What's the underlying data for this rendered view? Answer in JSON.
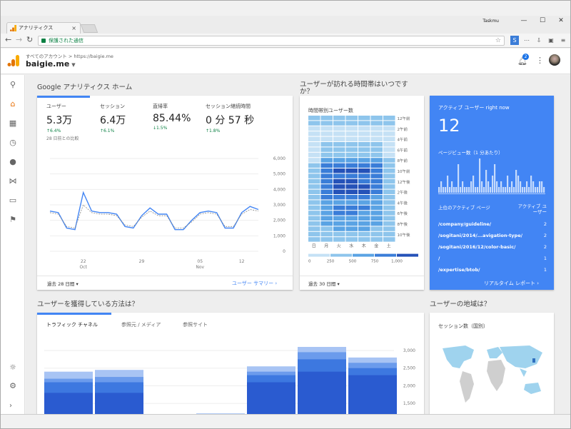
{
  "browser": {
    "tab_title": "アナリティクス",
    "tab_close": "×",
    "user": "Taskmu",
    "url_text": "保護された通信",
    "window_controls": {
      "min": "—",
      "max": "☐",
      "close": "✕"
    }
  },
  "header": {
    "breadcrumb": "すべてのアカウント > https://baigie.me",
    "property": "baigie.me",
    "notifications": "2"
  },
  "home": {
    "section_title": "Google アナリティクス ホーム",
    "metrics": [
      {
        "label": "ユーザー",
        "value": "5.3万",
        "change": "↑6.4%",
        "note": "28 日前との比較"
      },
      {
        "label": "セッション",
        "value": "6.4万",
        "change": "↑6.1%"
      },
      {
        "label": "直帰率",
        "value": "85.44%",
        "change": "↓1.5%"
      },
      {
        "label": "セッション継続時間",
        "value": "0 分 57 秒",
        "change": "↑1.8%"
      }
    ],
    "date_range": "過去 28 日間",
    "summary_link": "ユーザー サマリー"
  },
  "chart_data": [
    {
      "type": "line",
      "y_ticks": [
        "6,000",
        "5,000",
        "4,000",
        "3,000",
        "2,000",
        "1,000",
        "0"
      ],
      "ylim": [
        0,
        6000
      ],
      "x_ticks": [
        {
          "day": "22",
          "month": "Oct"
        },
        {
          "day": "29",
          "month": ""
        },
        {
          "day": "05",
          "month": "Nov"
        },
        {
          "day": "12",
          "month": ""
        }
      ],
      "series": [
        {
          "values": [
            2600,
            2500,
            1500,
            1400,
            3800,
            2600,
            2500,
            2500,
            2400,
            1600,
            1500,
            2300,
            2800,
            2400,
            2400,
            1400,
            1400,
            2000,
            2500,
            2600,
            2500,
            1500,
            1500,
            2500,
            2900,
            2700
          ]
        },
        {
          "values": [
            2500,
            2400,
            1600,
            1500,
            3000,
            2500,
            2400,
            2400,
            2300,
            1700,
            1600,
            2200,
            2600,
            2300,
            2300,
            1500,
            1500,
            1900,
            2400,
            2500,
            2400,
            1600,
            1600,
            2400,
            2700,
            2600
          ]
        }
      ]
    },
    {
      "type": "bar",
      "y_ticks": [
        "3,000",
        "2,500",
        "2,000",
        "1,500"
      ],
      "ylim": [
        1000,
        3100
      ],
      "series_colors": [
        "#2a5bd0",
        "#3d78e0",
        "#6b9bec",
        "#a8c4f4"
      ],
      "stacks": [
        [
          1800,
          2100,
          2200,
          2400
        ],
        [
          1800,
          2100,
          2250,
          2450
        ],
        [
          1100,
          1150,
          1180,
          1200
        ],
        [
          1120,
          1170,
          1200,
          1220
        ],
        [
          2100,
          2300,
          2400,
          2550
        ],
        [
          2400,
          2750,
          2950,
          3100
        ],
        [
          2300,
          2500,
          2650,
          2800
        ]
      ]
    }
  ],
  "heatmap": {
    "section_title": "ユーザーが訪れる時間帯はいつですか？",
    "title": "時間帯別ユーザー数",
    "hours": [
      "12午前",
      "2午前",
      "4午前",
      "6午前",
      "8午前",
      "10午前",
      "12午後",
      "2午後",
      "4午後",
      "6午後",
      "8午後",
      "10午後"
    ],
    "days": [
      "日",
      "月",
      "火",
      "水",
      "木",
      "金",
      "土"
    ],
    "legend": [
      "0",
      "250",
      "500",
      "750",
      "1,000"
    ],
    "date_range": "過去 30 日間",
    "rows": [
      [
        1,
        1,
        1,
        1,
        1,
        1,
        1
      ],
      [
        1,
        1,
        1,
        1,
        1,
        1,
        1
      ],
      [
        0,
        0,
        0,
        0,
        0,
        0,
        0
      ],
      [
        0,
        0,
        0,
        0,
        0,
        0,
        0
      ],
      [
        0,
        0,
        0,
        0,
        0,
        0,
        0
      ],
      [
        0,
        1,
        1,
        1,
        1,
        1,
        0
      ],
      [
        0,
        1,
        1,
        1,
        1,
        1,
        0
      ],
      [
        0,
        1,
        1,
        1,
        1,
        1,
        0
      ],
      [
        0,
        2,
        2,
        2,
        2,
        2,
        1
      ],
      [
        1,
        3,
        3,
        3,
        3,
        3,
        1
      ],
      [
        1,
        3,
        4,
        4,
        4,
        3,
        1
      ],
      [
        1,
        3,
        3,
        3,
        3,
        3,
        1
      ],
      [
        1,
        3,
        4,
        4,
        3,
        3,
        1
      ],
      [
        1,
        3,
        4,
        4,
        4,
        3,
        1
      ],
      [
        1,
        3,
        4,
        4,
        4,
        3,
        1
      ],
      [
        1,
        3,
        3,
        3,
        3,
        2,
        1
      ],
      [
        1,
        2,
        2,
        2,
        2,
        2,
        1
      ],
      [
        1,
        2,
        3,
        3,
        3,
        2,
        1
      ],
      [
        1,
        2,
        3,
        3,
        2,
        2,
        1
      ],
      [
        1,
        2,
        2,
        2,
        2,
        2,
        1
      ],
      [
        1,
        2,
        2,
        2,
        2,
        2,
        1
      ],
      [
        1,
        1,
        2,
        2,
        2,
        1,
        1
      ],
      [
        1,
        1,
        1,
        1,
        1,
        1,
        1
      ],
      [
        1,
        1,
        1,
        1,
        1,
        1,
        1
      ]
    ]
  },
  "realtime": {
    "title": "アクティブ ユーザー right now",
    "count": "12",
    "pageview_label": "ページビュー数（1 分あたり）",
    "pages_header": "上位のアクティブ ページ",
    "users_header": "アクティブ ユーザー",
    "pages": [
      {
        "path": "/company/guideline/",
        "users": "2"
      },
      {
        "path": "/sogitani/2014/...avigation-type/",
        "users": "2"
      },
      {
        "path": "/sogitani/2016/12/color-basic/",
        "users": "2"
      },
      {
        "path": "/",
        "users": "1"
      },
      {
        "path": "/expertise/btob/",
        "users": "1"
      }
    ],
    "report_link": "リアルタイム レポート",
    "bars": [
      1,
      2,
      1,
      1,
      3,
      1,
      2,
      1,
      1,
      5,
      1,
      2,
      1,
      1,
      1,
      2,
      3,
      1,
      1,
      6,
      2,
      1,
      4,
      2,
      1,
      3,
      5,
      2,
      1,
      2,
      1,
      1,
      3,
      1,
      2,
      1,
      4,
      3,
      2,
      1,
      1,
      2,
      1,
      3,
      2,
      1,
      1,
      2,
      2,
      1
    ]
  },
  "acquisition": {
    "section_title": "ユーザーを獲得している方法は？",
    "tabs": [
      "トラフィック チャネル",
      "参照元 / メディア",
      "参照サイト"
    ]
  },
  "geo": {
    "section_title": "ユーザーの地域は？",
    "title": "セッション数（国別）"
  },
  "colors": {
    "accent": "#4285f4",
    "realtime_bg": "#4285f4",
    "orange": "#e8710a",
    "green": "#0b8043"
  }
}
